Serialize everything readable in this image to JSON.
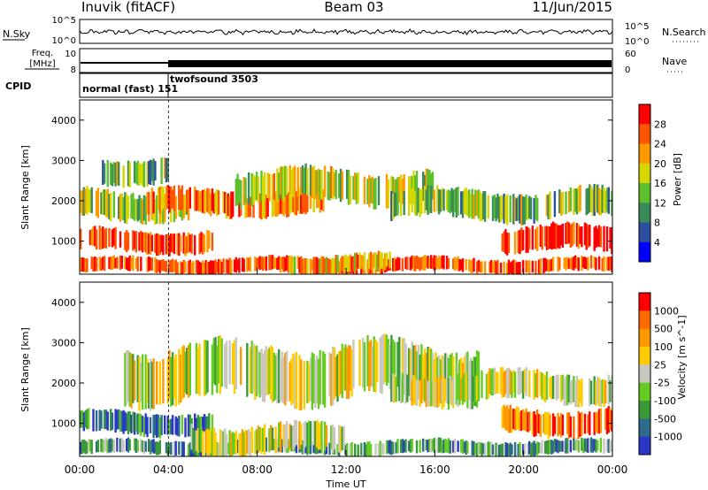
{
  "header": {
    "station": "Inuvik (fitACF)",
    "beam": "Beam 03",
    "date": "11/Jun/2015"
  },
  "panels": {
    "nsky_label": "N.Sky",
    "nsky_ticks": [
      "10^5",
      "10^0"
    ],
    "nsearch_ticks": [
      "10^5",
      "10^0"
    ],
    "nsearch_label": "N.Search",
    "freq_label_1": "Freq.",
    "freq_label_2": "[MHz]",
    "freq_ticks": [
      "10",
      "8"
    ],
    "nave_ticks": [
      "60",
      "0"
    ],
    "nave_label": "Nave",
    "cpid_label": "CPID",
    "cpid_normal": "normal (fast) 151",
    "cpid_twofsound": "twofsound 3503"
  },
  "chart_data": [
    {
      "type": "heatmap",
      "title": "",
      "ylabel": "Slant Range [km]",
      "ylim": [
        180,
        4500
      ],
      "yticks": [
        "1000",
        "2000",
        "3000",
        "4000"
      ],
      "colorbar": {
        "label": "Power [dB]",
        "ticks": [
          "4",
          "8",
          "12",
          "16",
          "20",
          "24",
          "28"
        ],
        "colors": [
          "#0000ff",
          "#2e4fa0",
          "#3a8a5a",
          "#5bbf2e",
          "#d6d600",
          "#ff9900",
          "#ff5500",
          "#ff0000"
        ]
      },
      "echo_bands": [
        {
          "t0": 0.0,
          "t1": 24.0,
          "r0": 200,
          "r1": 600,
          "level": 0.85
        },
        {
          "t0": 0.0,
          "t1": 6.0,
          "r0": 700,
          "r1": 1300,
          "level": 0.9
        },
        {
          "t0": 0.0,
          "t1": 5.0,
          "r0": 1500,
          "r1": 2300,
          "level": 0.5
        },
        {
          "t0": 1.0,
          "t1": 4.0,
          "r0": 2400,
          "r1": 3100,
          "level": 0.45
        },
        {
          "t0": 3.0,
          "t1": 11.0,
          "r0": 1600,
          "r1": 2300,
          "level": 0.75
        },
        {
          "t0": 7.0,
          "t1": 16.0,
          "r0": 1900,
          "r1": 2800,
          "level": 0.55
        },
        {
          "t0": 14.0,
          "t1": 24.0,
          "r0": 1500,
          "r1": 2300,
          "level": 0.45
        },
        {
          "t0": 19.0,
          "t1": 24.0,
          "r0": 700,
          "r1": 1400,
          "level": 0.95
        },
        {
          "t0": 9.0,
          "t1": 14.0,
          "r0": 200,
          "r1": 700,
          "level": 0.7
        }
      ]
    },
    {
      "type": "heatmap",
      "title": "",
      "xlabel": "Time UT",
      "ylabel": "Slant Range [km]",
      "xlim": [
        0,
        24
      ],
      "xticks": [
        "00:00",
        "04:00",
        "08:00",
        "12:00",
        "16:00",
        "20:00",
        "00:00"
      ],
      "ylim": [
        180,
        4500
      ],
      "yticks": [
        "1000",
        "2000",
        "3000",
        "4000"
      ],
      "colorbar": {
        "label": "Velocity [m s^-1]",
        "ticks": [
          "1000",
          "500",
          "100",
          "25",
          "-25",
          "-100",
          "-500",
          "-1000"
        ],
        "colors": [
          "#2a36c8",
          "#2e6b8a",
          "#3a9a3a",
          "#66cc22",
          "#c8c8c0",
          "#ffcc00",
          "#ff9900",
          "#ff6a00",
          "#ff0000"
        ]
      },
      "echo_bands": [
        {
          "t0": 0.0,
          "t1": 24.0,
          "r0": 200,
          "r1": 600,
          "level": 0.3
        },
        {
          "t0": 0.0,
          "t1": 6.0,
          "r0": 700,
          "r1": 1300,
          "level": 0.2
        },
        {
          "t0": 2.0,
          "t1": 18.0,
          "r0": 1500,
          "r1": 3000,
          "level": 0.5
        },
        {
          "t0": 14.0,
          "t1": 24.0,
          "r0": 1500,
          "r1": 2300,
          "level": 0.5
        },
        {
          "t0": 19.0,
          "t1": 24.0,
          "r0": 700,
          "r1": 1400,
          "level": 0.85
        },
        {
          "t0": 5.0,
          "t1": 12.0,
          "r0": 200,
          "r1": 1000,
          "level": 0.5
        }
      ]
    }
  ]
}
